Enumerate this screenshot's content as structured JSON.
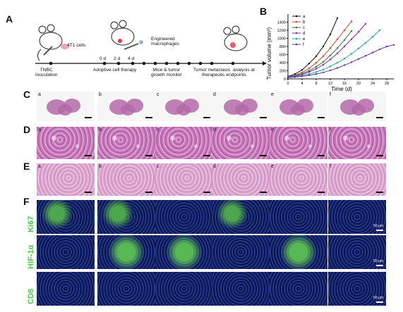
{
  "panels": {
    "A": "A",
    "B": "B",
    "C": "C",
    "D": "D",
    "E": "E",
    "F": "F"
  },
  "timeline": {
    "cells_label": "4T1 cells",
    "engineered_label": "Engineered\nmacrophages",
    "days": [
      "0 d",
      "2 d",
      "4 d"
    ],
    "stage_inoculation": "TNBC\ninoculation",
    "stage_therapy": "Adoptive cell therapy",
    "stage_monitor": "Mice & tumor\ngrowth monitor",
    "stage_analysis": "Tumor metastasis  analysis at\ntherapeutic endpoints"
  },
  "chart_data": {
    "type": "line",
    "ylabel": "Tumor volume (mm³)",
    "xlabel": "Time (d)",
    "xlim": [
      0,
      30
    ],
    "ylim": [
      0,
      1600
    ],
    "xticks": [
      0,
      4,
      8,
      12,
      16,
      20,
      24,
      28
    ],
    "yticks": [
      0,
      200,
      400,
      600,
      800,
      1000,
      1200,
      1400
    ],
    "legend_placement": "top-left",
    "colors": {
      "a": "#111111",
      "b": "#e53935",
      "c": "#2e7d32",
      "d": "#8e24aa",
      "e": "#26a69a",
      "f": "#5e35b1"
    },
    "series": [
      {
        "name": "a",
        "x": [
          0,
          2,
          4,
          6,
          8,
          10,
          12,
          14
        ],
        "y": [
          60,
          120,
          220,
          380,
          560,
          800,
          1100,
          1500
        ]
      },
      {
        "name": "b",
        "x": [
          0,
          2,
          4,
          6,
          8,
          10,
          12,
          14,
          16,
          18
        ],
        "y": [
          50,
          90,
          160,
          260,
          400,
          560,
          760,
          980,
          1200,
          1420
        ]
      },
      {
        "name": "c",
        "x": [
          0,
          2,
          4,
          6,
          8,
          10,
          12,
          14,
          16,
          18
        ],
        "y": [
          45,
          80,
          130,
          200,
          300,
          420,
          580,
          760,
          960,
          1180
        ]
      },
      {
        "name": "d",
        "x": [
          0,
          2,
          4,
          6,
          8,
          10,
          12,
          14,
          16,
          18,
          20,
          22
        ],
        "y": [
          40,
          70,
          110,
          170,
          250,
          350,
          480,
          630,
          800,
          980,
          1160,
          1360
        ]
      },
      {
        "name": "e",
        "x": [
          0,
          2,
          4,
          6,
          8,
          10,
          12,
          14,
          16,
          18,
          20,
          22,
          24,
          26
        ],
        "y": [
          35,
          55,
          85,
          120,
          170,
          230,
          310,
          400,
          500,
          620,
          750,
          890,
          1040,
          1200
        ]
      },
      {
        "name": "f",
        "x": [
          0,
          2,
          4,
          6,
          8,
          10,
          12,
          14,
          16,
          18,
          20,
          22,
          24,
          26,
          28,
          30
        ],
        "y": [
          30,
          45,
          65,
          90,
          120,
          160,
          210,
          270,
          340,
          410,
          490,
          570,
          650,
          730,
          800,
          840
        ]
      }
    ]
  },
  "tile_labels": [
    "a",
    "b",
    "c",
    "d",
    "e",
    "f"
  ],
  "row_labels": {
    "ki67": "Ki67",
    "hif": "HIF-1α",
    "cd8": "CD8"
  },
  "scale_text": "50 μm"
}
